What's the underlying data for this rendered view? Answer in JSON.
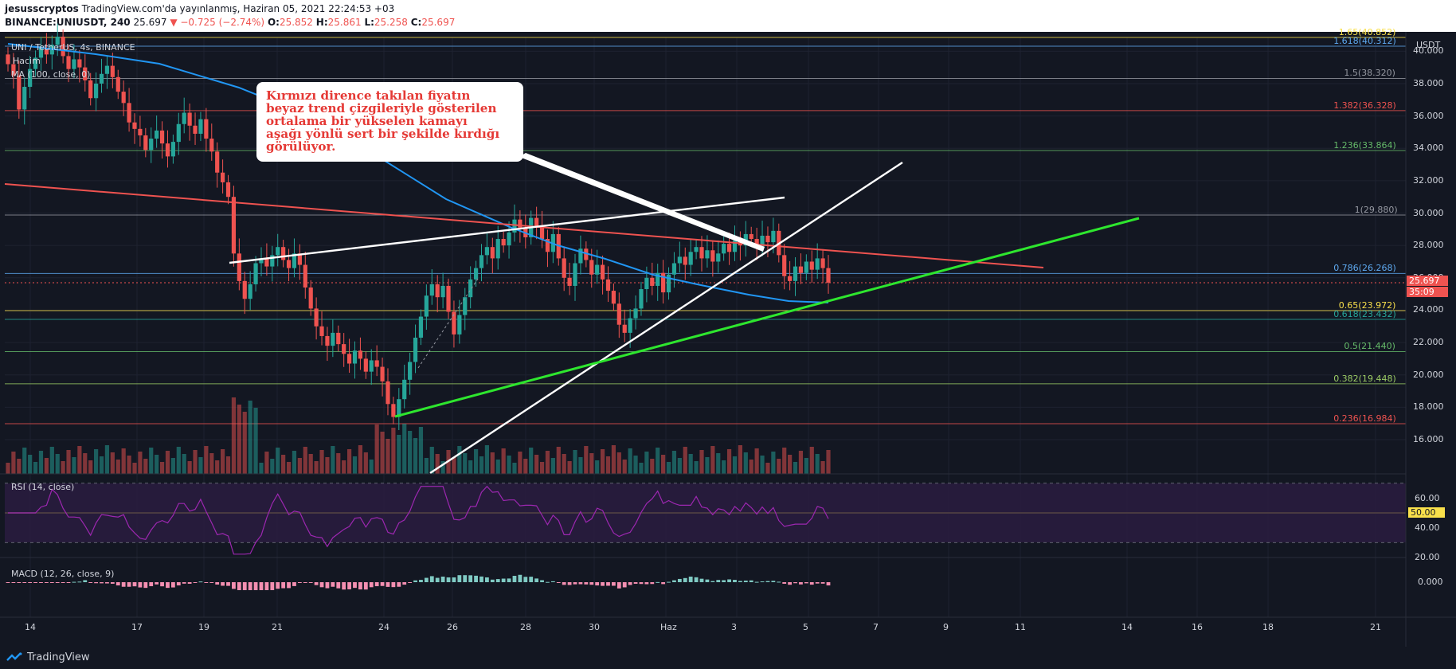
{
  "header": {
    "author": "jesusscryptos",
    "published": "TradingView.com'da yayınlanmış, Haziran 05, 2021 22:24:53 +03",
    "symbol": "BINANCE:UNIUSDT, 240",
    "last": "25.697",
    "change": "▼ −0.725 (−2.74%)",
    "o": "25.852",
    "h": "25.861",
    "l": "25.258",
    "c": "25.697"
  },
  "legend": {
    "pair": "UNI / TetherUS, 4s, BINANCE",
    "volume": "Hacim",
    "ma": "MA (100, close, 0)",
    "rsi": "RSI (14, close)",
    "macd": "MACD (12, 26, close, 9)"
  },
  "annotation": [
    "Kırmızı dirence takılan fiyatın",
    "beyaz trend çizgileriyle gösterilen",
    "ortalama bir yükselen kamayı",
    "aşağı yönlü sert bir şekilde kırdığı",
    "görülüyor."
  ],
  "axis": {
    "currency": "USDT",
    "price_ticks": [
      "40.000",
      "38.000",
      "36.000",
      "34.000",
      "32.000",
      "30.000",
      "28.000",
      "26.000",
      "24.000",
      "22.000",
      "20.000",
      "18.000",
      "16.000"
    ],
    "rsi_ticks": [
      "60.00",
      "40.00",
      "20.00"
    ],
    "rsi_value": "50.00",
    "macd_tick": "0.000",
    "last_price": "25.697",
    "countdown": "35:09",
    "dates": [
      "14",
      "17",
      "19",
      "21",
      "24",
      "26",
      "28",
      "30",
      "Haz",
      "3",
      "5",
      "7",
      "9",
      "11",
      "14",
      "16",
      "18",
      "21"
    ]
  },
  "fib": [
    {
      "label": "1.65(40.852)",
      "price": 40.852,
      "color": "#f9e04b"
    },
    {
      "label": "1.618(40.312)",
      "price": 40.312,
      "color": "#5ea9f0"
    },
    {
      "label": "1.5(38.320)",
      "price": 38.32,
      "color": "#9598a1"
    },
    {
      "label": "1.382(36.328)",
      "price": 36.328,
      "color": "#ef5350"
    },
    {
      "label": "1.236(33.864)",
      "price": 33.864,
      "color": "#66bb6a"
    },
    {
      "label": "1(29.880)",
      "price": 29.88,
      "color": "#9598a1"
    },
    {
      "label": "0.786(26.268)",
      "price": 26.268,
      "color": "#5ea9f0"
    },
    {
      "label": "0.65(23.972)",
      "price": 23.972,
      "color": "#f9e04b"
    },
    {
      "label": "0.618(23.432)",
      "price": 23.432,
      "color": "#26a69a"
    },
    {
      "label": "0.5(21.440)",
      "price": 21.44,
      "color": "#66bb6a"
    },
    {
      "label": "0.382(19.448)",
      "price": 19.448,
      "color": "#9ccc65"
    },
    {
      "label": "0.236(16.984)",
      "price": 16.984,
      "color": "#ef5350"
    }
  ],
  "colors": {
    "up": "#26a69a",
    "down": "#ef5350",
    "ma": "#2196f3",
    "rsi": "#9c27b0",
    "background": "#131722"
  },
  "footer": {
    "brand": "TradingView"
  }
}
